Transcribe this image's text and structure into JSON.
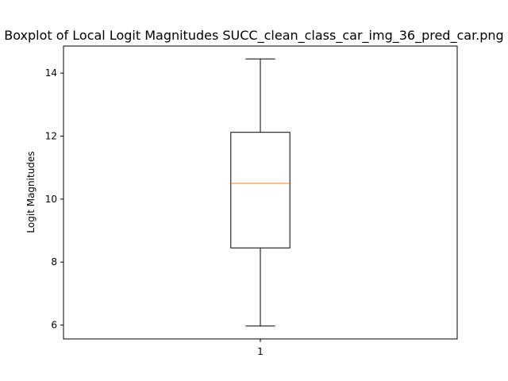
{
  "chart_data": {
    "type": "boxplot",
    "title": "Boxplot of Local Logit Magnitudes SUCC_clean_class_car_img_36_pred_car.png",
    "xlabel": "",
    "ylabel": "Logit Magnitudes",
    "categories": [
      "1"
    ],
    "boxes": [
      {
        "label": "1",
        "whisker_low": 5.97,
        "q1": 8.45,
        "median": 10.5,
        "q3": 12.12,
        "whisker_high": 14.45
      }
    ],
    "ylim": [
      5.56,
      14.86
    ],
    "yticks": [
      6,
      8,
      10,
      12,
      14
    ],
    "ytick_labels": [
      "6",
      "8",
      "10",
      "12",
      "14"
    ],
    "grid": false,
    "legend": "none",
    "colors": {
      "box": "#000000",
      "median": "#ff7f0e",
      "whisker": "#000000",
      "frame": "#000000"
    }
  }
}
